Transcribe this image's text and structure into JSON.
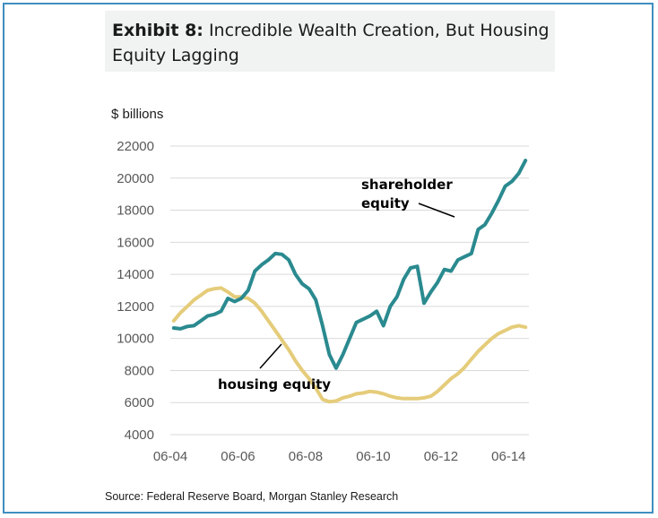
{
  "header": {
    "exhibit": "Exhibit 8:",
    "title": "Incredible Wealth Creation, But Housing Equity Lagging"
  },
  "source": "Source: Federal Reserve Board, Morgan Stanley Research",
  "colors": {
    "shareholder": "#2a8a8f",
    "housing": "#e5cc7a",
    "grid": "#d9d9d9",
    "frame": "#3f8fbf"
  },
  "chart_data": {
    "type": "line",
    "title": "Incredible Wealth Creation, But Housing Equity Lagging",
    "ylabel": "$ billions",
    "xlabel": "",
    "ylim": [
      4000,
      22000
    ],
    "yticks": [
      4000,
      6000,
      8000,
      10000,
      12000,
      14000,
      16000,
      18000,
      20000,
      22000
    ],
    "xlim": [
      2004.0,
      2014.6
    ],
    "xticks": [
      {
        "label": "06-04",
        "x": 2004.0
      },
      {
        "label": "06-06",
        "x": 2006.0
      },
      {
        "label": "06-08",
        "x": 2008.0
      },
      {
        "label": "06-10",
        "x": 2010.0
      },
      {
        "label": "06-12",
        "x": 2012.0
      },
      {
        "label": "06-14",
        "x": 2014.0
      }
    ],
    "annotations": [
      {
        "text": [
          "shareholder",
          "equity"
        ],
        "series": "shareholder equity"
      },
      {
        "text": [
          "housing equity"
        ],
        "series": "housing equity"
      }
    ],
    "series": [
      {
        "name": "shareholder equity",
        "x": [
          2004.1,
          2004.3,
          2004.5,
          2004.7,
          2004.9,
          2005.1,
          2005.3,
          2005.5,
          2005.7,
          2005.9,
          2006.1,
          2006.3,
          2006.5,
          2006.7,
          2006.9,
          2007.1,
          2007.3,
          2007.5,
          2007.7,
          2007.9,
          2008.1,
          2008.3,
          2008.5,
          2008.7,
          2008.9,
          2009.1,
          2009.3,
          2009.5,
          2009.7,
          2009.9,
          2010.1,
          2010.3,
          2010.5,
          2010.7,
          2010.9,
          2011.1,
          2011.3,
          2011.5,
          2011.7,
          2011.9,
          2012.1,
          2012.3,
          2012.5,
          2012.7,
          2012.9,
          2013.1,
          2013.3,
          2013.5,
          2013.7,
          2013.9,
          2014.1,
          2014.3,
          2014.5
        ],
        "values": [
          10650,
          10600,
          10750,
          10800,
          11100,
          11400,
          11500,
          11700,
          12500,
          12300,
          12500,
          13000,
          14200,
          14600,
          14900,
          15300,
          15250,
          14900,
          14000,
          13400,
          13100,
          12400,
          10800,
          9000,
          8150,
          9000,
          10000,
          11000,
          11200,
          11400,
          11700,
          10800,
          12000,
          12600,
          13700,
          14400,
          14500,
          12200,
          12900,
          13500,
          14300,
          14200,
          14900,
          15100,
          15300,
          16800,
          17100,
          17800,
          18600,
          19500,
          19800,
          20300,
          21100
        ]
      },
      {
        "name": "housing equity",
        "x": [
          2004.1,
          2004.3,
          2004.5,
          2004.7,
          2004.9,
          2005.1,
          2005.3,
          2005.5,
          2005.7,
          2005.9,
          2006.1,
          2006.3,
          2006.5,
          2006.7,
          2006.9,
          2007.1,
          2007.3,
          2007.5,
          2007.7,
          2007.9,
          2008.1,
          2008.3,
          2008.5,
          2008.7,
          2008.9,
          2009.1,
          2009.3,
          2009.5,
          2009.7,
          2009.9,
          2010.1,
          2010.3,
          2010.5,
          2010.7,
          2010.9,
          2011.1,
          2011.3,
          2011.5,
          2011.7,
          2011.9,
          2012.1,
          2012.3,
          2012.5,
          2012.7,
          2012.9,
          2013.1,
          2013.3,
          2013.5,
          2013.7,
          2013.9,
          2014.1,
          2014.3,
          2014.5
        ],
        "values": [
          11100,
          11600,
          12000,
          12400,
          12700,
          13000,
          13100,
          13150,
          12900,
          12600,
          12600,
          12500,
          12200,
          11700,
          11100,
          10500,
          9900,
          9300,
          8600,
          8000,
          7500,
          6900,
          6200,
          6050,
          6100,
          6300,
          6400,
          6550,
          6600,
          6700,
          6650,
          6550,
          6400,
          6300,
          6250,
          6250,
          6250,
          6300,
          6400,
          6700,
          7100,
          7500,
          7800,
          8200,
          8700,
          9200,
          9600,
          10000,
          10300,
          10500,
          10700,
          10800,
          10700
        ]
      }
    ]
  }
}
